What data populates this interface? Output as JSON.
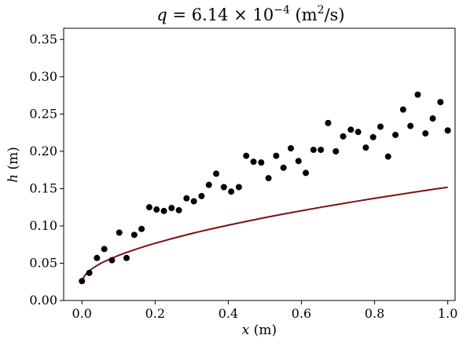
{
  "chart_data": {
    "type": "scatter",
    "title": {
      "lhs_var": "q",
      "equals": " = 6.14 × 10",
      "exponent": "−4",
      "unit_open": " (m",
      "unit_exp": "2",
      "unit_close": "/s)"
    },
    "xlabel": {
      "var": "x",
      "unit": " (m)"
    },
    "ylabel": {
      "var": "h",
      "unit": " (m)"
    },
    "xlim": [
      -0.05,
      1.02
    ],
    "ylim": [
      0.0,
      0.365
    ],
    "x_ticks": [
      0.0,
      0.2,
      0.4,
      0.6,
      0.8,
      1.0
    ],
    "x_tick_labels": [
      "0.0",
      "0.2",
      "0.4",
      "0.6",
      "0.8",
      "1.0"
    ],
    "y_ticks": [
      0.0,
      0.05,
      0.1,
      0.15,
      0.2,
      0.25,
      0.3,
      0.35
    ],
    "y_tick_labels": [
      "0.00",
      "0.05",
      "0.10",
      "0.15",
      "0.20",
      "0.25",
      "0.30",
      "0.35"
    ],
    "grid": false,
    "series": [
      {
        "type": "scatter",
        "color": "#000000",
        "x": [
          0.0,
          0.02,
          0.041,
          0.061,
          0.082,
          0.102,
          0.122,
          0.143,
          0.163,
          0.184,
          0.204,
          0.224,
          0.245,
          0.265,
          0.286,
          0.306,
          0.327,
          0.347,
          0.367,
          0.388,
          0.408,
          0.429,
          0.449,
          0.469,
          0.49,
          0.51,
          0.531,
          0.551,
          0.571,
          0.592,
          0.612,
          0.633,
          0.653,
          0.673,
          0.694,
          0.714,
          0.735,
          0.755,
          0.776,
          0.796,
          0.816,
          0.837,
          0.857,
          0.878,
          0.898,
          0.918,
          0.939,
          0.959,
          0.98,
          1.0
        ],
        "y": [
          0.026,
          0.037,
          0.057,
          0.069,
          0.054,
          0.091,
          0.057,
          0.088,
          0.096,
          0.125,
          0.122,
          0.12,
          0.124,
          0.121,
          0.137,
          0.133,
          0.14,
          0.155,
          0.17,
          0.152,
          0.146,
          0.152,
          0.194,
          0.186,
          0.185,
          0.164,
          0.194,
          0.178,
          0.204,
          0.187,
          0.171,
          0.202,
          0.202,
          0.238,
          0.2,
          0.22,
          0.229,
          0.226,
          0.205,
          0.219,
          0.233,
          0.193,
          0.222,
          0.256,
          0.234,
          0.276,
          0.224,
          0.244,
          0.266,
          0.228
        ]
      },
      {
        "type": "line",
        "color": "#7a1212",
        "x": [
          0.0,
          0.005,
          0.01,
          0.02,
          0.03,
          0.04,
          0.05,
          0.06,
          0.08,
          0.1,
          0.12,
          0.15,
          0.18,
          0.2,
          0.25,
          0.3,
          0.35,
          0.4,
          0.45,
          0.5,
          0.55,
          0.6,
          0.65,
          0.7,
          0.75,
          0.8,
          0.85,
          0.9,
          0.95,
          1.0
        ],
        "y": [
          0.0235,
          0.0314,
          0.0349,
          0.0398,
          0.0435,
          0.0466,
          0.0494,
          0.0519,
          0.0564,
          0.0604,
          0.0641,
          0.0691,
          0.0738,
          0.0767,
          0.0835,
          0.0898,
          0.0956,
          0.101,
          0.1061,
          0.1111,
          0.1158,
          0.1203,
          0.1247,
          0.1289,
          0.133,
          0.137,
          0.1408,
          0.1446,
          0.1483,
          0.1519
        ]
      }
    ]
  }
}
